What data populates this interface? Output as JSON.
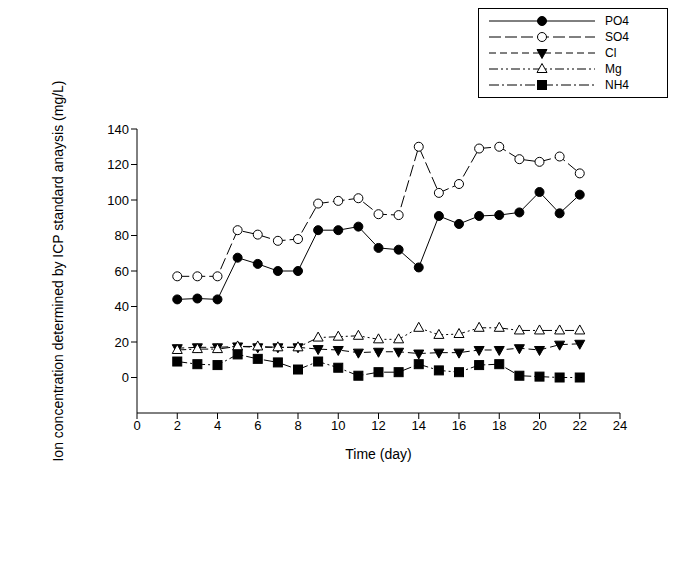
{
  "chart_data": {
    "type": "line",
    "x_label": "Time (day)",
    "y_label": "Ion concentration determined by ICP standard anaysis (mg/L)",
    "x": [
      2,
      3,
      4,
      5,
      6,
      7,
      8,
      9,
      10,
      11,
      12,
      13,
      14,
      15,
      16,
      17,
      18,
      19,
      20,
      21,
      22
    ],
    "xlim": [
      0,
      24
    ],
    "xticks": [
      0,
      2,
      4,
      6,
      8,
      10,
      12,
      14,
      16,
      18,
      20,
      22,
      24
    ],
    "ylim": [
      -20,
      140
    ],
    "yticks": [
      0,
      20,
      40,
      60,
      80,
      100,
      120,
      140
    ],
    "grid": false,
    "legend": "upper right",
    "series": [
      {
        "name": "PO4",
        "color": "#000000",
        "marker": "circle",
        "line_style": "solid",
        "values": [
          44,
          44.5,
          44,
          67.5,
          64,
          60,
          60,
          83,
          83,
          85,
          73,
          72,
          62,
          91,
          86.5,
          91,
          91.5,
          93,
          104.5,
          92.5,
          103
        ]
      },
      {
        "name": "SO4",
        "color": "#000000",
        "marker": "circle-open",
        "line_style": "long-dash",
        "values": [
          57,
          57,
          57,
          83,
          80.5,
          77,
          78,
          98,
          99.5,
          101,
          92,
          91.5,
          130,
          104,
          109,
          129,
          130,
          123,
          121.5,
          124.5,
          115
        ]
      },
      {
        "name": "Cl",
        "color": "#000000",
        "marker": "triangle-down",
        "line_style": "dash",
        "values": [
          16.5,
          17,
          17,
          17.5,
          17,
          17,
          17,
          16,
          15.5,
          14,
          14.5,
          14.5,
          13.5,
          14,
          14,
          15.5,
          15.5,
          16.5,
          15.5,
          18.5,
          19
        ]
      },
      {
        "name": "Mg",
        "color": "#000000",
        "marker": "triangle-open",
        "line_style": "dash-dot-dot",
        "values": [
          15.5,
          16,
          16,
          17.5,
          17.5,
          17,
          17,
          22.5,
          23,
          23.5,
          21.5,
          21.5,
          28,
          24,
          24.5,
          28,
          28,
          26.5,
          26.5,
          26.5,
          26.5
        ]
      },
      {
        "name": "NH4",
        "color": "#000000",
        "marker": "square",
        "line_style": "dash-dot",
        "values": [
          9,
          7.5,
          7,
          13,
          10.5,
          8.5,
          4.5,
          9,
          5.5,
          1,
          3,
          3,
          7.5,
          4,
          3,
          7,
          7.5,
          1,
          0.5,
          0,
          0
        ]
      }
    ]
  }
}
